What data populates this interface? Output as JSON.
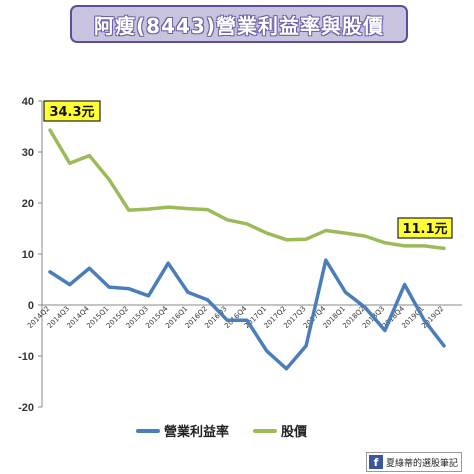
{
  "title": "阿瘦(8443)營業利益率與股價",
  "credit": {
    "icon": "facebook-icon",
    "text": "夏綠蒂的選股筆記"
  },
  "chart_data": {
    "type": "line",
    "categories": [
      "2014Q2",
      "2014Q3",
      "2014Q4",
      "2015Q1",
      "2015Q2",
      "2015Q3",
      "2015Q4",
      "2016Q1",
      "2016Q2",
      "2016Q3",
      "2016Q4",
      "2017Q1",
      "2017Q2",
      "2017Q3",
      "2017Q4",
      "2018Q1",
      "2018Q2",
      "2018Q3",
      "2018Q4",
      "2019Q1",
      "2019Q2"
    ],
    "ylim": [
      -20,
      40
    ],
    "yticks": [
      -20,
      -10,
      0,
      10,
      20,
      30,
      40
    ],
    "series": [
      {
        "name": "營業利益率",
        "color": "#4a7ebb",
        "values": [
          6.5,
          4.0,
          7.2,
          3.5,
          3.2,
          1.8,
          8.2,
          2.5,
          1.0,
          -3.0,
          -3.0,
          -9.0,
          -12.5,
          -8.0,
          8.8,
          2.5,
          -0.5,
          -5.0,
          4.0,
          -3.0,
          -8.0
        ]
      },
      {
        "name": "股價",
        "color": "#9bbb59",
        "values": [
          34.3,
          27.8,
          29.3,
          24.6,
          18.6,
          18.8,
          19.2,
          18.9,
          18.7,
          16.7,
          15.9,
          14.1,
          12.8,
          12.9,
          14.6,
          14.1,
          13.5,
          12.2,
          11.6,
          11.6,
          11.1
        ]
      }
    ],
    "annotations": [
      {
        "text": "34.3元",
        "series": 1,
        "index": 0
      },
      {
        "text": "11.1元",
        "series": 1,
        "index": 20
      }
    ],
    "legend": "bottom"
  }
}
